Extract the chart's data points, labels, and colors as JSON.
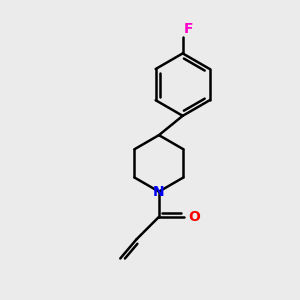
{
  "background_color": "#EBEBEB",
  "bond_color": "#000000",
  "nitrogen_color": "#0000FF",
  "oxygen_color": "#FF0000",
  "fluorine_color": "#FF00CC",
  "line_width": 1.8,
  "fig_size": [
    3.0,
    3.0
  ],
  "dpi": 100,
  "xlim": [
    0,
    10
  ],
  "ylim": [
    0,
    10
  ]
}
